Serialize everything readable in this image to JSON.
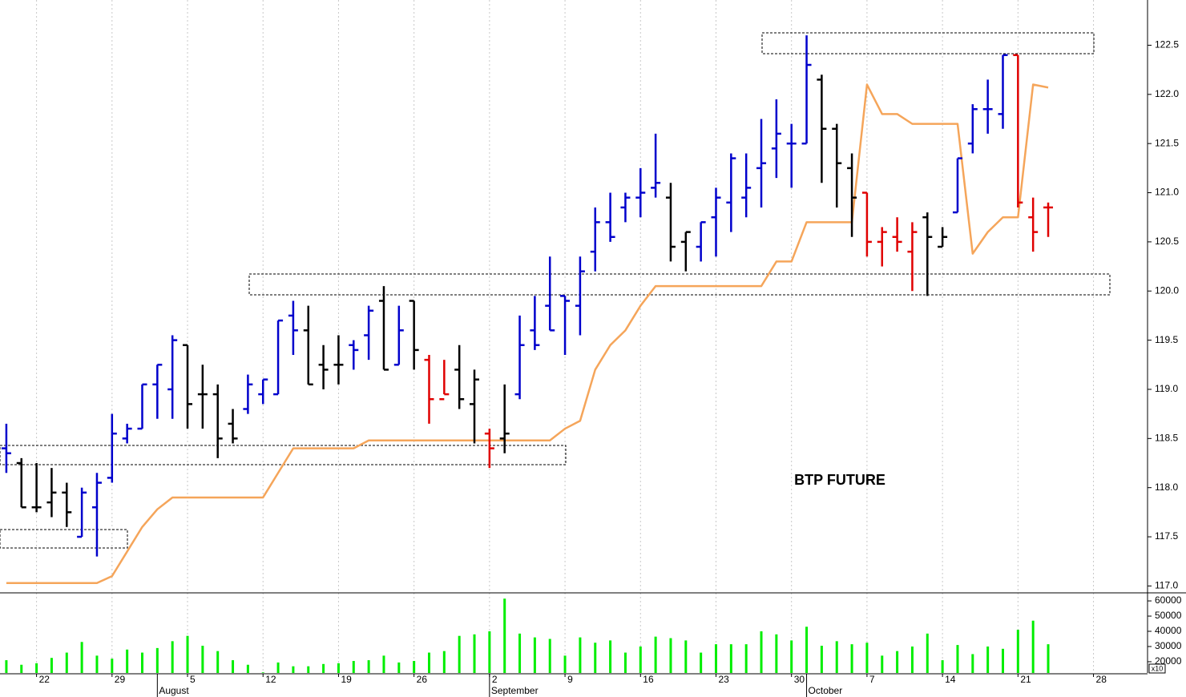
{
  "chart_data": [
    {
      "type": "ohlc",
      "annotation": "BTP FUTURE",
      "xlim": [
        -0.42,
        75.58
      ],
      "xticks": [
        {
          "value": 2,
          "label": "22"
        },
        {
          "value": 7,
          "label": "29"
        },
        {
          "value": 12,
          "label": "5"
        },
        {
          "value": 17,
          "label": "12"
        },
        {
          "value": 22,
          "label": "19"
        },
        {
          "value": 27,
          "label": "26"
        },
        {
          "value": 32,
          "label": "2"
        },
        {
          "value": 37,
          "label": "9"
        },
        {
          "value": 42,
          "label": "16"
        },
        {
          "value": 47,
          "label": "23"
        },
        {
          "value": 52,
          "label": "30"
        },
        {
          "value": 57,
          "label": "7"
        },
        {
          "value": 62,
          "label": "14"
        },
        {
          "value": 67,
          "label": "21"
        },
        {
          "value": 72,
          "label": "28"
        }
      ],
      "month_ticks": [
        {
          "value": 10,
          "label": "August"
        },
        {
          "value": 32,
          "label": "September"
        },
        {
          "value": 53,
          "label": "October"
        }
      ],
      "ylim": [
        116.93,
        122.96
      ],
      "yticks": [
        {
          "value": 117,
          "label": "117.0"
        },
        117.5,
        {
          "value": 118,
          "label": "118.0"
        },
        118.5,
        {
          "value": 119,
          "label": "119.0"
        },
        119.5,
        {
          "value": 120,
          "label": "120.0"
        },
        120.5,
        {
          "value": 121,
          "label": "121.0"
        },
        121.5,
        {
          "value": 122,
          "label": "122.0"
        },
        122.5
      ],
      "grid": true,
      "open": [
        118.4,
        118.25,
        117.8,
        117.85,
        117.95,
        117.5,
        117.8,
        118.1,
        118.5,
        118.6,
        119.05,
        119.0,
        119.45,
        118.95,
        118.95,
        118.65,
        118.8,
        118.95,
        118.95,
        119.75,
        119.6,
        119.25,
        119.25,
        119.45,
        119.55,
        119.9,
        119.25,
        119.9,
        119.3,
        118.9,
        119.2,
        118.85,
        118.55,
        118.5,
        118.95,
        119.6,
        119.85,
        119.95,
        119.85,
        120.4,
        120.7,
        120.85,
        120.95,
        121.05,
        120.95,
        120.5,
        120.45,
        120.75,
        120.9,
        120.95,
        121.25,
        121.45,
        121.5,
        121.5,
        122.15,
        121.65,
        121.25,
        121.0,
        120.5,
        120.55,
        120.4,
        120.75,
        120.45,
        120.8,
        121.5,
        121.85,
        121.8,
        122.4,
        120.75,
        120.85
      ],
      "high": [
        118.65,
        118.3,
        118.25,
        118.2,
        118.05,
        118.0,
        118.15,
        118.75,
        118.65,
        119.05,
        119.25,
        119.55,
        119.45,
        119.25,
        119.05,
        118.8,
        119.15,
        119.1,
        119.7,
        119.9,
        119.85,
        119.45,
        119.55,
        119.5,
        119.85,
        120.05,
        119.85,
        119.9,
        119.35,
        119.3,
        119.45,
        119.2,
        118.6,
        119.05,
        119.75,
        119.95,
        120.35,
        119.95,
        120.35,
        120.85,
        121.0,
        121.0,
        121.25,
        121.6,
        121.1,
        120.6,
        120.7,
        121.05,
        121.4,
        121.4,
        121.75,
        121.95,
        121.7,
        122.6,
        122.2,
        121.7,
        121.4,
        121.0,
        120.65,
        120.75,
        120.7,
        120.8,
        120.65,
        121.35,
        121.9,
        122.15,
        122.4,
        122.4,
        120.95,
        120.9
      ],
      "low": [
        118.15,
        117.8,
        117.75,
        117.7,
        117.6,
        117.5,
        117.3,
        118.05,
        118.45,
        118.6,
        118.7,
        118.7,
        118.6,
        118.6,
        118.3,
        118.45,
        118.75,
        118.85,
        118.95,
        119.35,
        119.05,
        119.0,
        119.05,
        119.2,
        119.3,
        119.2,
        119.25,
        119.2,
        118.65,
        118.95,
        118.8,
        118.45,
        118.2,
        118.35,
        118.9,
        119.4,
        119.6,
        119.35,
        119.55,
        120.2,
        120.5,
        120.7,
        120.75,
        120.95,
        120.3,
        120.2,
        120.3,
        120.35,
        120.6,
        120.75,
        120.85,
        121.15,
        121.05,
        121.5,
        121.1,
        120.85,
        120.55,
        120.35,
        120.25,
        120.4,
        120.0,
        119.95,
        120.45,
        120.8,
        121.4,
        121.6,
        121.65,
        120.85,
        120.4,
        120.55
      ],
      "close": [
        118.35,
        117.8,
        117.8,
        117.95,
        117.75,
        117.95,
        118.05,
        118.55,
        118.6,
        119.05,
        119.25,
        119.5,
        118.85,
        118.95,
        118.5,
        118.5,
        119.05,
        119.1,
        119.7,
        119.6,
        119.05,
        119.2,
        119.25,
        119.4,
        119.8,
        119.2,
        119.6,
        119.4,
        118.9,
        118.95,
        118.9,
        119.1,
        118.4,
        118.55,
        119.45,
        119.45,
        119.6,
        119.9,
        120.2,
        120.7,
        120.55,
        120.95,
        121.0,
        121.1,
        120.45,
        120.6,
        120.7,
        120.95,
        121.35,
        121.05,
        121.3,
        121.6,
        121.5,
        122.3,
        121.65,
        121.3,
        120.95,
        120.5,
        120.6,
        120.5,
        120.6,
        120.55,
        120.55,
        121.35,
        121.85,
        121.85,
        122.4,
        120.9,
        120.6,
        120.85
      ],
      "bar_colors": [
        "#0000cc",
        "#000000",
        "#000000",
        "#000000",
        "#000000",
        "#0000cc",
        "#0000cc",
        "#0000cc",
        "#0000cc",
        "#0000cc",
        "#0000cc",
        "#0000cc",
        "#000000",
        "#000000",
        "#000000",
        "#000000",
        "#0000cc",
        "#0000cc",
        "#0000cc",
        "#0000cc",
        "#000000",
        "#000000",
        "#000000",
        "#0000cc",
        "#0000cc",
        "#000000",
        "#0000cc",
        "#000000",
        "#e00000",
        "#e00000",
        "#000000",
        "#000000",
        "#e00000",
        "#000000",
        "#0000cc",
        "#0000cc",
        "#0000cc",
        "#0000cc",
        "#0000cc",
        "#0000cc",
        "#0000cc",
        "#0000cc",
        "#0000cc",
        "#0000cc",
        "#000000",
        "#000000",
        "#0000cc",
        "#0000cc",
        "#0000cc",
        "#0000cc",
        "#0000cc",
        "#0000cc",
        "#0000cc",
        "#0000cc",
        "#000000",
        "#000000",
        "#000000",
        "#e00000",
        "#e00000",
        "#e00000",
        "#e00000",
        "#000000",
        "#000000",
        "#0000cc",
        "#0000cc",
        "#0000cc",
        "#0000cc",
        "#e00000",
        "#e00000",
        "#e00000"
      ],
      "line": {
        "color": "#f5a55a",
        "values": [
          117.03,
          117.03,
          117.03,
          117.03,
          117.03,
          117.03,
          117.03,
          117.1,
          117.35,
          117.6,
          117.78,
          117.9,
          117.9,
          117.9,
          117.9,
          117.9,
          117.9,
          117.9,
          118.15,
          118.4,
          118.4,
          118.4,
          118.4,
          118.4,
          118.48,
          118.48,
          118.48,
          118.48,
          118.48,
          118.48,
          118.48,
          118.48,
          118.48,
          118.48,
          118.48,
          118.48,
          118.48,
          118.6,
          118.68,
          119.2,
          119.45,
          119.6,
          119.85,
          120.05,
          120.05,
          120.05,
          120.05,
          120.05,
          120.05,
          120.05,
          120.05,
          120.3,
          120.3,
          120.7,
          120.7,
          120.7,
          120.7,
          122.1,
          121.8,
          121.8,
          121.7,
          121.7,
          121.7,
          121.7,
          120.38,
          120.6,
          120.75,
          120.75,
          122.1,
          122.07
        ]
      }
    },
    {
      "type": "bar",
      "color": "#00ee00",
      "scale_note": "x10",
      "ylim": [
        12600,
        65300
      ],
      "yticks": [
        20000,
        30000,
        40000,
        50000,
        60000
      ],
      "values": [
        21000,
        18000,
        19000,
        22500,
        26000,
        33000,
        24000,
        22000,
        28000,
        26000,
        29000,
        33500,
        37000,
        30500,
        27000,
        21000,
        18000,
        13000,
        19500,
        17000,
        17000,
        18500,
        19000,
        20500,
        21000,
        24000,
        19500,
        20500,
        26000,
        27000,
        37000,
        38000,
        40000,
        61500,
        38500,
        36000,
        35000,
        24000,
        36000,
        32500,
        34000,
        26000,
        30000,
        36500,
        35500,
        34000,
        26000,
        31500,
        31500,
        31500,
        40000,
        38000,
        34000,
        43000,
        30500,
        33500,
        31500,
        32500,
        24000,
        27000,
        30000,
        38500,
        21000,
        31000,
        25000,
        30000,
        28500,
        41000,
        47000,
        31500
      ]
    }
  ]
}
